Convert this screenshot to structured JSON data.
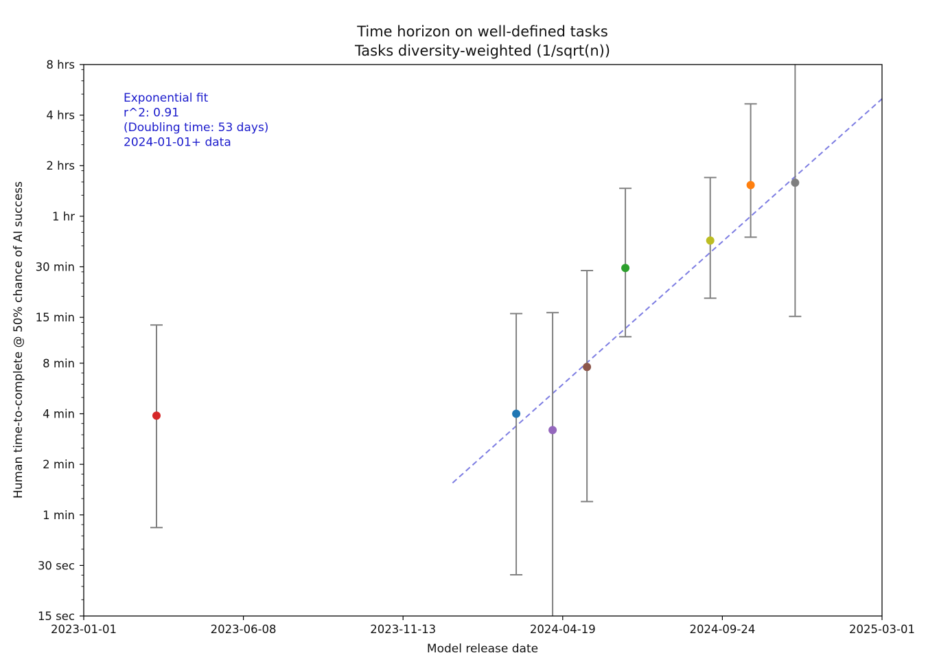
{
  "chart_data": {
    "type": "scatter",
    "title": "Time horizon on well-defined tasks",
    "subtitle": "Tasks diversity-weighted (1/sqrt(n))",
    "xlabel": "Model release date",
    "ylabel": "Human time-to-complete @ 50% chance of AI success",
    "x_scale": "date",
    "y_scale": "log2",
    "xlim": [
      "2023-01-01",
      "2025-03-01"
    ],
    "ylim_minutes": [
      0.25,
      480
    ],
    "x_ticks": [
      {
        "value": "2023-01-01",
        "label": "2023-01-01"
      },
      {
        "value": "2023-06-08",
        "label": "2023-06-08"
      },
      {
        "value": "2023-11-13",
        "label": "2023-11-13"
      },
      {
        "value": "2024-04-19",
        "label": "2024-04-19"
      },
      {
        "value": "2024-09-24",
        "label": "2024-09-24"
      },
      {
        "value": "2025-03-01",
        "label": "2025-03-01"
      }
    ],
    "y_ticks": [
      {
        "minutes": 0.25,
        "label": "15 sec"
      },
      {
        "minutes": 0.5,
        "label": "30 sec"
      },
      {
        "minutes": 1,
        "label": "1 min"
      },
      {
        "minutes": 2,
        "label": "2 min"
      },
      {
        "minutes": 4,
        "label": "4 min"
      },
      {
        "minutes": 8,
        "label": "8 min"
      },
      {
        "minutes": 15,
        "label": "15 min"
      },
      {
        "minutes": 30,
        "label": "30 min"
      },
      {
        "minutes": 60,
        "label": "1 hr"
      },
      {
        "minutes": 120,
        "label": "2 hrs"
      },
      {
        "minutes": 240,
        "label": "4 hrs"
      },
      {
        "minutes": 480,
        "label": "8 hrs"
      }
    ],
    "points": [
      {
        "date": "2023-03-14",
        "minutes": 3.9,
        "low": 0.84,
        "high": 13.5,
        "color": "#d62728"
      },
      {
        "date": "2024-03-04",
        "minutes": 4.0,
        "low": 0.44,
        "high": 15.8,
        "color": "#1f77b4"
      },
      {
        "date": "2024-04-09",
        "minutes": 3.2,
        "low": 0.22,
        "high": 16.0,
        "color": "#9467bd"
      },
      {
        "date": "2024-05-13",
        "minutes": 7.6,
        "low": 1.2,
        "high": 28.5,
        "color": "#8c564b"
      },
      {
        "date": "2024-06-20",
        "minutes": 29.5,
        "low": 11.5,
        "high": 88,
        "color": "#2ca02c"
      },
      {
        "date": "2024-09-12",
        "minutes": 43,
        "low": 19.5,
        "high": 102,
        "color": "#bcbd22"
      },
      {
        "date": "2024-10-22",
        "minutes": 92,
        "low": 45,
        "high": 280,
        "color": "#ff7f0e"
      },
      {
        "date": "2024-12-05",
        "minutes": 95,
        "low": 15.2,
        "high": 490,
        "color": "#7f7f7f"
      }
    ],
    "fit_line": {
      "start": {
        "date": "2024-01-01",
        "minutes": 1.55
      },
      "end": {
        "date": "2025-03-01",
        "minutes": 300
      },
      "color": "#6666dd",
      "style": "dashed"
    },
    "annotation": {
      "lines": [
        "Exponential fit",
        "r^2: 0.91",
        "(Doubling time: 53 days)",
        "2024-01-01+ data"
      ],
      "color": "#1a1acc",
      "placement": "top-left"
    },
    "grid": false,
    "legend": "none",
    "errorbar_color": "#808080"
  }
}
